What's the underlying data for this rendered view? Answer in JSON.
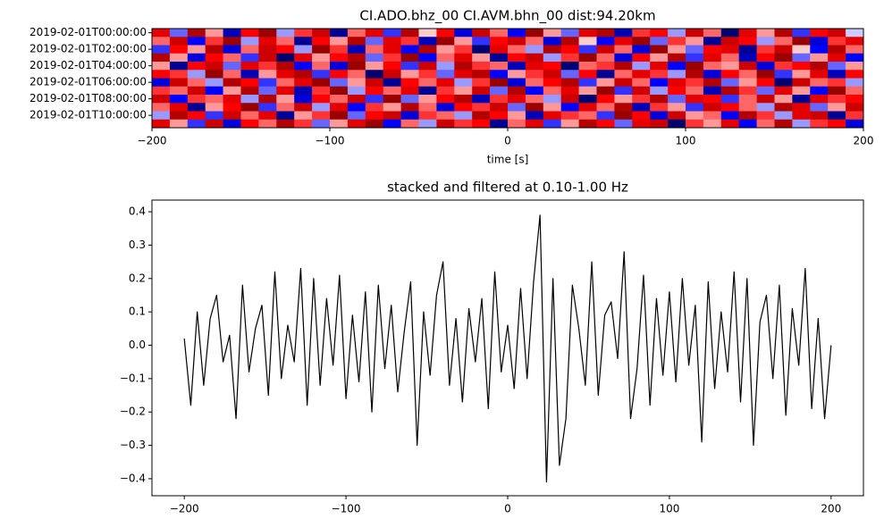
{
  "chart_data": [
    {
      "type": "heatmap",
      "title": "CI.ADO.bhz_00 CI.AVM.bhn_00  dist:94.20km",
      "xlabel": "time [s]",
      "xlim": [
        -200,
        200
      ],
      "xticks": [
        {
          "value": -200,
          "label": "−200"
        },
        {
          "value": -100,
          "label": "−100"
        },
        0,
        100,
        200
      ],
      "categories": [
        "2019-02-01T00:00:00",
        null,
        "2019-02-01T02:00:00",
        null,
        "2019-02-01T04:00:00",
        null,
        "2019-02-01T06:00:00",
        null,
        "2019-02-01T08:00:00",
        null,
        "2019-02-01T10:00:00",
        null
      ],
      "colormap": "seismic",
      "clim": [
        -1,
        1
      ],
      "z": [
        [
          0.6,
          -0.3,
          0.8,
          0.2,
          -0.7,
          0.5,
          0.9,
          -0.2,
          0.4,
          0.7,
          -0.8,
          0.3,
          0.6,
          -0.4,
          0.8,
          0.1,
          0.5,
          -0.6,
          0.7,
          0.3,
          -0.5,
          0.9,
          0.2,
          -0.3,
          0.6,
          0.8,
          -0.7,
          0.4,
          0.5,
          -0.2,
          0.7,
          0.3,
          -0.9,
          0.6,
          0.2,
          0.8,
          -0.4,
          0.5,
          0.7,
          -0.1
        ],
        [
          0.3,
          0.7,
          -0.5,
          0.4,
          0.9,
          -0.2,
          0.6,
          0.3,
          -0.8,
          0.5,
          0.2,
          0.8,
          -0.3,
          0.6,
          0.4,
          -0.7,
          0.9,
          0.2,
          -0.4,
          0.5,
          0.7,
          0.3,
          -0.6,
          0.8,
          0.1,
          -0.5,
          0.6,
          0.9,
          -0.3,
          0.4,
          0.2,
          -0.8,
          0.7,
          0.5,
          -0.2,
          0.3,
          0.9,
          -0.6,
          0.4,
          0.6
        ],
        [
          -0.4,
          0.5,
          0.2,
          0.8,
          -0.6,
          0.3,
          0.7,
          0.5,
          -0.2,
          0.9,
          0.4,
          -0.7,
          0.3,
          0.6,
          -0.5,
          0.8,
          0.2,
          0.4,
          -0.9,
          0.6,
          0.3,
          -0.2,
          0.8,
          0.5,
          -0.4,
          0.7,
          0.3,
          -0.6,
          0.9,
          0.2,
          -0.3,
          0.5,
          0.6,
          -0.8,
          0.4,
          0.7,
          0.1,
          -0.5,
          0.8,
          0.3
        ],
        [
          0.8,
          0.2,
          -0.6,
          0.5,
          0.3,
          -0.4,
          0.7,
          -0.9,
          0.6,
          0.2,
          0.5,
          0.8,
          -0.3,
          0.4,
          0.9,
          -0.5,
          0.3,
          0.6,
          0.2,
          -0.8,
          0.5,
          0.7,
          -0.2,
          0.4,
          0.9,
          0.3,
          -0.6,
          0.5,
          0.2,
          0.8,
          -0.4,
          0.6,
          0.3,
          -0.7,
          0.5,
          0.9,
          -0.3,
          0.2,
          0.6,
          -0.5
        ],
        [
          0.2,
          -0.8,
          0.5,
          0.7,
          -0.3,
          0.6,
          0.4,
          0.8,
          -0.5,
          0.3,
          -0.6,
          0.9,
          0.2,
          0.5,
          -0.4,
          0.7,
          -0.2,
          0.8,
          0.4,
          0.3,
          -0.7,
          0.6,
          0.5,
          -0.9,
          0.3,
          0.4,
          0.8,
          -0.2,
          0.6,
          -0.5,
          0.9,
          0.3,
          0.2,
          0.7,
          -0.6,
          0.4,
          0.5,
          0.8,
          -0.3,
          0.2
        ],
        [
          0.5,
          0.4,
          -0.2,
          0.9,
          0.3,
          -0.7,
          0.2,
          0.6,
          0.8,
          -0.4,
          0.5,
          0.3,
          -0.9,
          0.7,
          0.2,
          0.4,
          -0.3,
          0.6,
          0.8,
          -0.5,
          0.2,
          0.4,
          0.7,
          -0.3,
          0.5,
          -0.8,
          0.3,
          0.6,
          0.4,
          -0.2,
          0.8,
          -0.6,
          0.5,
          0.3,
          0.9,
          -0.4,
          0.2,
          0.6,
          -0.7,
          0.5
        ],
        [
          -0.6,
          0.7,
          0.3,
          -0.2,
          0.8,
          0.5,
          -0.4,
          0.3,
          0.6,
          0.9,
          -0.3,
          0.2,
          0.7,
          -0.8,
          0.5,
          0.3,
          0.6,
          -0.2,
          0.4,
          0.9,
          -0.6,
          0.3,
          0.5,
          0.8,
          -0.4,
          0.2,
          0.7,
          0.3,
          -0.5,
          0.6,
          0.4,
          0.8,
          -0.3,
          0.2,
          0.5,
          -0.9,
          0.7,
          0.3,
          0.4,
          -0.2
        ],
        [
          0.4,
          0.3,
          0.7,
          -0.5,
          0.2,
          0.8,
          -0.3,
          0.6,
          -0.7,
          0.4,
          0.9,
          -0.2,
          0.5,
          0.3,
          0.6,
          -0.8,
          0.4,
          0.2,
          0.7,
          -0.3,
          0.8,
          -0.5,
          0.3,
          0.6,
          0.2,
          0.9,
          -0.4,
          0.7,
          -0.2,
          0.5,
          0.3,
          -0.7,
          0.8,
          0.4,
          -0.3,
          0.6,
          0.2,
          -0.5,
          0.9,
          0.3
        ],
        [
          0.7,
          -0.5,
          0.4,
          0.3,
          0.6,
          -0.2,
          0.8,
          0.2,
          -0.6,
          0.5,
          0.3,
          0.7,
          -0.4,
          0.9,
          -0.3,
          0.2,
          0.5,
          0.8,
          -0.7,
          0.4,
          0.6,
          0.3,
          -0.2,
          0.7,
          -0.9,
          0.5,
          0.2,
          0.4,
          0.8,
          -0.3,
          0.6,
          0.5,
          -0.4,
          0.3,
          0.7,
          0.2,
          -0.8,
          0.6,
          0.4,
          0.5
        ],
        [
          0.3,
          0.6,
          -0.8,
          0.2,
          0.5,
          0.9,
          -0.4,
          0.3,
          0.7,
          -0.2,
          0.6,
          -0.5,
          0.4,
          0.2,
          0.8,
          0.3,
          -0.6,
          0.5,
          0.4,
          0.7,
          -0.3,
          0.9,
          0.2,
          -0.5,
          0.6,
          0.3,
          0.8,
          -0.7,
          0.4,
          0.2,
          -0.4,
          0.7,
          0.5,
          0.3,
          -0.2,
          0.8,
          0.6,
          -0.3,
          0.2,
          0.7
        ],
        [
          -0.2,
          0.8,
          0.5,
          -0.4,
          0.7,
          0.3,
          0.6,
          -0.8,
          0.2,
          0.4,
          0.9,
          -0.3,
          0.5,
          0.7,
          -0.6,
          0.4,
          0.3,
          -0.2,
          0.8,
          0.5,
          0.2,
          -0.7,
          0.6,
          0.4,
          0.3,
          -0.4,
          0.9,
          0.5,
          -0.6,
          0.7,
          0.2,
          0.3,
          -0.5,
          0.8,
          0.4,
          -0.2,
          0.6,
          0.7,
          -0.8,
          0.4
        ],
        [
          0.6,
          0.2,
          -0.4,
          0.7,
          -0.6,
          0.5,
          0.3,
          0.8,
          0.4,
          -0.3,
          0.2,
          0.6,
          0.9,
          -0.5,
          0.3,
          -0.2,
          0.7,
          0.4,
          0.5,
          -0.8,
          0.3,
          0.6,
          -0.4,
          0.2,
          0.8,
          0.5,
          -0.3,
          0.6,
          0.7,
          -0.9,
          0.4,
          0.2,
          0.6,
          -0.5,
          0.3,
          0.8,
          -0.2,
          0.4,
          0.5,
          -0.6
        ]
      ]
    },
    {
      "type": "line",
      "title": "stacked and filtered at 0.10-1.00 Hz",
      "color": "#000000",
      "xlim": [
        -220,
        220
      ],
      "ylim": [
        -0.451,
        0.435
      ],
      "xticks": [
        {
          "value": -200,
          "label": "−200"
        },
        {
          "value": -100,
          "label": "−100"
        },
        0,
        100,
        200
      ],
      "yticks": [
        {
          "value": -0.4,
          "label": "−0.4"
        },
        {
          "value": -0.3,
          "label": "−0.3"
        },
        {
          "value": -0.2,
          "label": "−0.2"
        },
        {
          "value": -0.1,
          "label": "−0.1"
        },
        {
          "value": 0,
          "label": "0.0"
        },
        0.1,
        0.2,
        0.3,
        0.4
      ],
      "x": [
        -200,
        -196,
        -192,
        -188,
        -184,
        -180,
        -176,
        -172,
        -168,
        -164,
        -160,
        -156,
        -152,
        -148,
        -144,
        -140,
        -136,
        -132,
        -128,
        -124,
        -120,
        -116,
        -112,
        -108,
        -104,
        -100,
        -96,
        -92,
        -88,
        -84,
        -80,
        -76,
        -72,
        -68,
        -64,
        -60,
        -56,
        -52,
        -48,
        -44,
        -40,
        -36,
        -32,
        -28,
        -24,
        -20,
        -16,
        -12,
        -8,
        -4,
        0,
        4,
        8,
        12,
        16,
        20,
        24,
        28,
        32,
        36,
        40,
        44,
        48,
        52,
        56,
        60,
        64,
        68,
        72,
        76,
        80,
        84,
        88,
        92,
        96,
        100,
        104,
        108,
        112,
        116,
        120,
        124,
        128,
        132,
        136,
        140,
        144,
        148,
        152,
        156,
        160,
        164,
        168,
        172,
        176,
        180,
        184,
        188,
        192,
        196,
        200
      ],
      "values": [
        0.02,
        -0.18,
        0.1,
        -0.12,
        0.08,
        0.15,
        -0.05,
        0.03,
        -0.22,
        0.18,
        -0.08,
        0.05,
        0.12,
        -0.15,
        0.22,
        -0.1,
        0.06,
        -0.05,
        0.23,
        -0.18,
        0.2,
        -0.12,
        0.14,
        -0.06,
        0.21,
        -0.16,
        0.09,
        -0.11,
        0.16,
        -0.2,
        0.18,
        -0.07,
        0.12,
        -0.14,
        0.04,
        0.19,
        -0.3,
        0.1,
        -0.09,
        0.15,
        0.25,
        -0.12,
        0.08,
        -0.17,
        0.11,
        -0.05,
        0.14,
        -0.19,
        0.22,
        -0.08,
        0.06,
        -0.13,
        0.17,
        -0.1,
        0.19,
        0.39,
        -0.41,
        0.2,
        -0.36,
        -0.22,
        0.18,
        0.05,
        -0.12,
        0.25,
        -0.15,
        0.09,
        0.13,
        -0.04,
        0.28,
        -0.22,
        -0.07,
        0.21,
        -0.18,
        0.14,
        -0.09,
        0.16,
        -0.11,
        0.2,
        -0.06,
        0.12,
        -0.29,
        0.19,
        -0.13,
        0.1,
        -0.08,
        0.22,
        -0.17,
        0.2,
        -0.3,
        0.07,
        0.15,
        -0.1,
        0.18,
        -0.21,
        0.11,
        -0.06,
        0.23,
        -0.19,
        0.08,
        -0.22,
        0.0
      ]
    }
  ]
}
